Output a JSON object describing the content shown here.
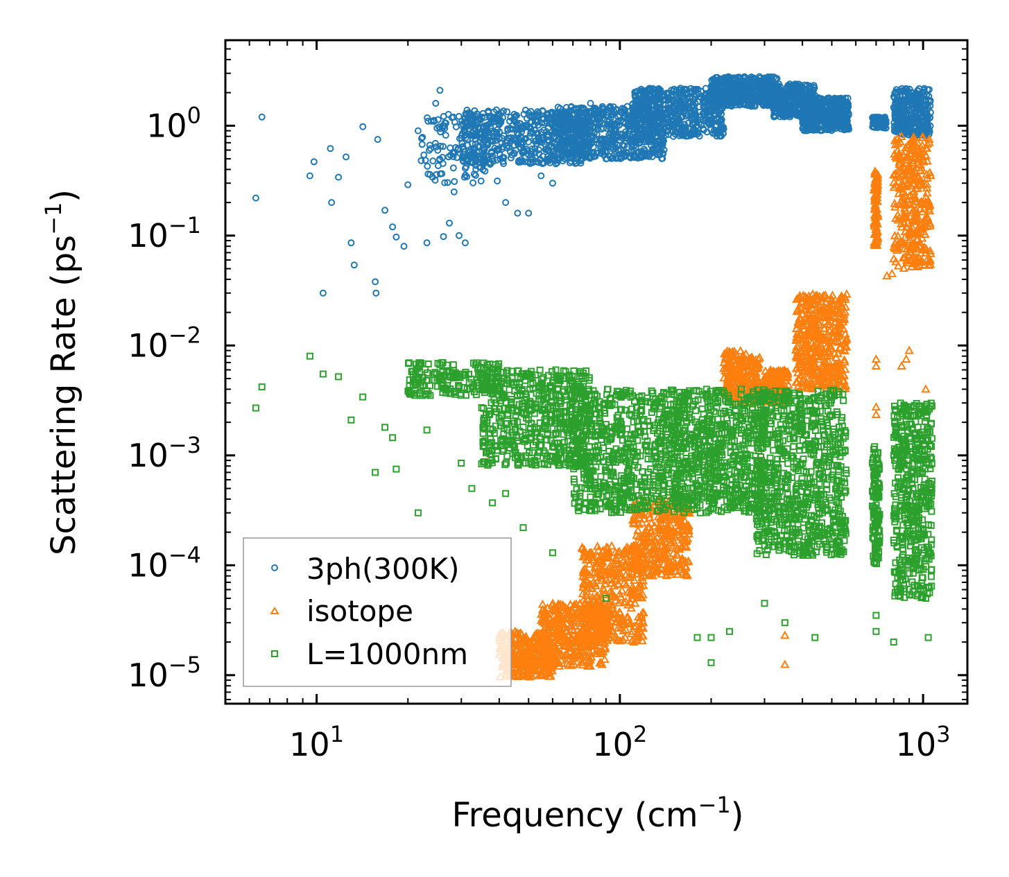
{
  "chart_data": {
    "type": "scatter",
    "xscale": "log",
    "yscale": "log",
    "xlabel_main": "Frequency (cm",
    "xlabel_exp": "−1",
    "xlabel_close": ")",
    "ylabel_main": "Scattering Rate (ps",
    "ylabel_exp": "−1",
    "ylabel_close": ")",
    "xlim": [
      5,
      1400
    ],
    "ylim": [
      5.5e-06,
      6
    ],
    "x_ticks": [
      {
        "value": 10,
        "base": "10",
        "exp": "1"
      },
      {
        "value": 100,
        "base": "10",
        "exp": "2"
      },
      {
        "value": 1000,
        "base": "10",
        "exp": "3"
      }
    ],
    "y_ticks": [
      {
        "value": 1,
        "base": "10",
        "exp": "0"
      },
      {
        "value": 0.1,
        "base": "10",
        "exp": "−1"
      },
      {
        "value": 0.01,
        "base": "10",
        "exp": "−2"
      },
      {
        "value": 0.001,
        "base": "10",
        "exp": "−3"
      },
      {
        "value": 0.0001,
        "base": "10",
        "exp": "−4"
      },
      {
        "value": 1e-05,
        "base": "10",
        "exp": "−5"
      }
    ],
    "legend_position": "lower-left",
    "series": [
      {
        "name": "3ph(300K)",
        "marker": "circle",
        "color": "#1f77b4",
        "points": [
          [
            6.3,
            0.22
          ],
          [
            6.6,
            1.2
          ],
          [
            9.5,
            0.35
          ],
          [
            9.8,
            0.47
          ],
          [
            10.5,
            0.03
          ],
          [
            11.1,
            0.62
          ],
          [
            11.2,
            0.2
          ],
          [
            11.8,
            0.34
          ],
          [
            12.5,
            0.52
          ],
          [
            13,
            0.086
          ],
          [
            13.3,
            0.054
          ],
          [
            14.2,
            0.98
          ],
          [
            15.6,
            0.038
          ],
          [
            15.7,
            0.03
          ],
          [
            15.9,
            0.75
          ],
          [
            16.8,
            0.17
          ],
          [
            17.8,
            0.12
          ],
          [
            18.3,
            0.097
          ],
          [
            19.4,
            0.08
          ],
          [
            20,
            0.29
          ],
          [
            21.6,
            0.9
          ],
          [
            23.1,
            0.086
          ],
          [
            24.7,
            1.6
          ],
          [
            25.5,
            2.1
          ],
          [
            26.2,
            0.098
          ],
          [
            27.4,
            0.13
          ],
          [
            28.4,
            0.25
          ],
          [
            29.5,
            0.1
          ],
          [
            30.9,
            0.086
          ],
          [
            32.5,
            0.98
          ],
          [
            35,
            0.78
          ],
          [
            38,
            0.53
          ],
          [
            42,
            0.2
          ],
          [
            46,
            0.16
          ],
          [
            50,
            0.16
          ],
          [
            55,
            0.35
          ],
          [
            60,
            0.3
          ],
          [
            70,
            0.6
          ],
          [
            80,
            1.6
          ],
          [
            90,
            0.5
          ],
          [
            120,
            0.75
          ],
          [
            150,
            0.8
          ]
        ],
        "bands": [
          {
            "x": [
              22,
              40
            ],
            "y": [
              0.3,
              1.3
            ],
            "n": 140
          },
          {
            "x": [
              30,
              80
            ],
            "y": [
              0.45,
              1.4
            ],
            "n": 520
          },
          {
            "x": [
              60,
              140
            ],
            "y": [
              0.5,
              1.5
            ],
            "n": 600
          },
          {
            "x": [
              110,
              220
            ],
            "y": [
              0.8,
              2.2
            ],
            "n": 520
          },
          {
            "x": [
              200,
              330
            ],
            "y": [
              1.5,
              2.8
            ],
            "n": 520
          },
          {
            "x": [
              320,
              440
            ],
            "y": [
              1.2,
              2.4
            ],
            "n": 320
          },
          {
            "x": [
              400,
              570
            ],
            "y": [
              0.9,
              1.8
            ],
            "n": 420
          },
          {
            "x": [
              680,
              760
            ],
            "y": [
              0.95,
              1.2
            ],
            "n": 80
          },
          {
            "x": [
              800,
              1060
            ],
            "y": [
              0.8,
              2.2
            ],
            "n": 320
          }
        ]
      },
      {
        "name": "isotope",
        "marker": "triangle",
        "color": "#ff7f0e",
        "points": [
          [
            350,
            1.25e-05
          ],
          [
            350,
            2.3e-05
          ],
          [
            700,
            0.00275
          ],
          [
            700,
            0.00235
          ],
          [
            700,
            0.0065
          ],
          [
            700,
            0.0075
          ],
          [
            760,
            0.043
          ],
          [
            790,
            0.045
          ],
          [
            850,
            0.0065
          ],
          [
            880,
            0.0075
          ],
          [
            900,
            0.009
          ],
          [
            1020,
            0.004
          ]
        ],
        "bands": [
          {
            "x": [
              40,
              60
            ],
            "y": [
              9.5e-06,
              2.5e-05
            ],
            "n": 300
          },
          {
            "x": [
              55,
              90
            ],
            "y": [
              1.2e-05,
              4.5e-05
            ],
            "n": 380
          },
          {
            "x": [
              75,
              120
            ],
            "y": [
              2e-05,
              0.00015
            ],
            "n": 380
          },
          {
            "x": [
              110,
              170
            ],
            "y": [
              8e-05,
              0.0004
            ],
            "n": 320
          },
          {
            "x": [
              220,
              290
            ],
            "y": [
              0.003,
              0.009
            ],
            "n": 220
          },
          {
            "x": [
              300,
              360
            ],
            "y": [
              0.003,
              0.006
            ],
            "n": 160
          },
          {
            "x": [
              380,
              560
            ],
            "y": [
              0.004,
              0.03
            ],
            "n": 420
          },
          {
            "x": [
              690,
              710
            ],
            "y": [
              0.08,
              0.4
            ],
            "n": 90
          },
          {
            "x": [
              800,
              1060
            ],
            "y": [
              0.05,
              0.8
            ],
            "n": 320
          }
        ]
      },
      {
        "name": "L=1000nm",
        "marker": "square",
        "color": "#2ca02c",
        "points": [
          [
            6.3,
            0.0027
          ],
          [
            6.6,
            0.0042
          ],
          [
            9.5,
            0.008
          ],
          [
            10.5,
            0.0055
          ],
          [
            11.8,
            0.0052
          ],
          [
            13,
            0.0021
          ],
          [
            14.2,
            0.0034
          ],
          [
            15.6,
            0.0007
          ],
          [
            16.8,
            0.0018
          ],
          [
            17.8,
            0.00145
          ],
          [
            18.3,
            0.00075
          ],
          [
            21.6,
            0.0003
          ],
          [
            23.1,
            0.0017
          ],
          [
            30,
            0.00085
          ],
          [
            32.5,
            0.0005
          ],
          [
            38,
            0.00037
          ],
          [
            42,
            0.00045
          ],
          [
            48,
            0.00022
          ],
          [
            60,
            0.00013
          ],
          [
            90,
            5e-05
          ],
          [
            180,
            2.2e-05
          ],
          [
            200,
            1.3e-05
          ],
          [
            200,
            2.2e-05
          ],
          [
            230,
            2.5e-05
          ],
          [
            300,
            4.5e-05
          ],
          [
            350,
            3e-05
          ],
          [
            440,
            2.2e-05
          ],
          [
            700,
            2.5e-05
          ],
          [
            700,
            3.5e-05
          ],
          [
            800,
            2e-05
          ],
          [
            1040,
            2.2e-05
          ]
        ],
        "bands": [
          {
            "x": [
              20,
              40
            ],
            "y": [
              0.0035,
              0.007
            ],
            "n": 180
          },
          {
            "x": [
              35,
              80
            ],
            "y": [
              0.0008,
              0.006
            ],
            "n": 560
          },
          {
            "x": [
              70,
              160
            ],
            "y": [
              0.0003,
              0.004
            ],
            "n": 640
          },
          {
            "x": [
              150,
              300
            ],
            "y": [
              0.0003,
              0.004
            ],
            "n": 640
          },
          {
            "x": [
              280,
              560
            ],
            "y": [
              0.00012,
              0.004
            ],
            "n": 760
          },
          {
            "x": [
              680,
              720
            ],
            "y": [
              0.0001,
              0.0012
            ],
            "n": 120
          },
          {
            "x": [
              800,
              1070
            ],
            "y": [
              5e-05,
              0.003
            ],
            "n": 460
          }
        ]
      }
    ]
  }
}
